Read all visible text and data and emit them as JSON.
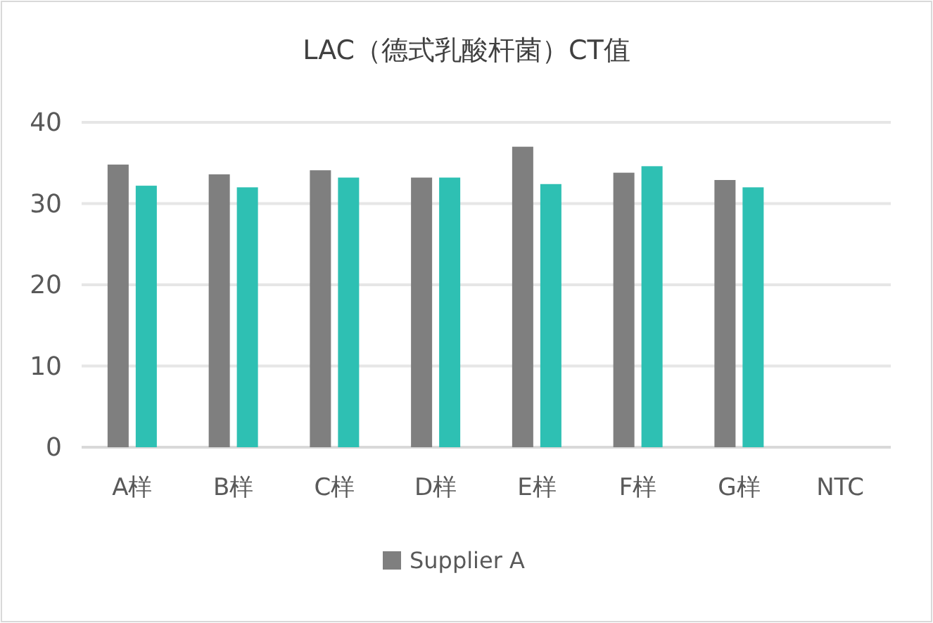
{
  "chart_data": {
    "type": "bar",
    "title": "LAC（德式乳酸杆菌）CT值",
    "categories": [
      "A样",
      "B样",
      "C样",
      "D样",
      "E样",
      "F样",
      "G样",
      "NTC"
    ],
    "series": [
      {
        "name": "Supplier A",
        "color": "#7f7f7f",
        "values": [
          34.8,
          33.6,
          34.1,
          33.2,
          37.0,
          33.8,
          32.9,
          null
        ]
      },
      {
        "color": "#2ec0b3",
        "values": [
          32.2,
          32.0,
          33.2,
          33.2,
          32.4,
          34.6,
          32.0,
          null
        ]
      }
    ],
    "ylim": [
      0,
      40
    ],
    "yticks": [
      0,
      10,
      20,
      30,
      40
    ],
    "grid": "y",
    "legend": "bottom"
  }
}
